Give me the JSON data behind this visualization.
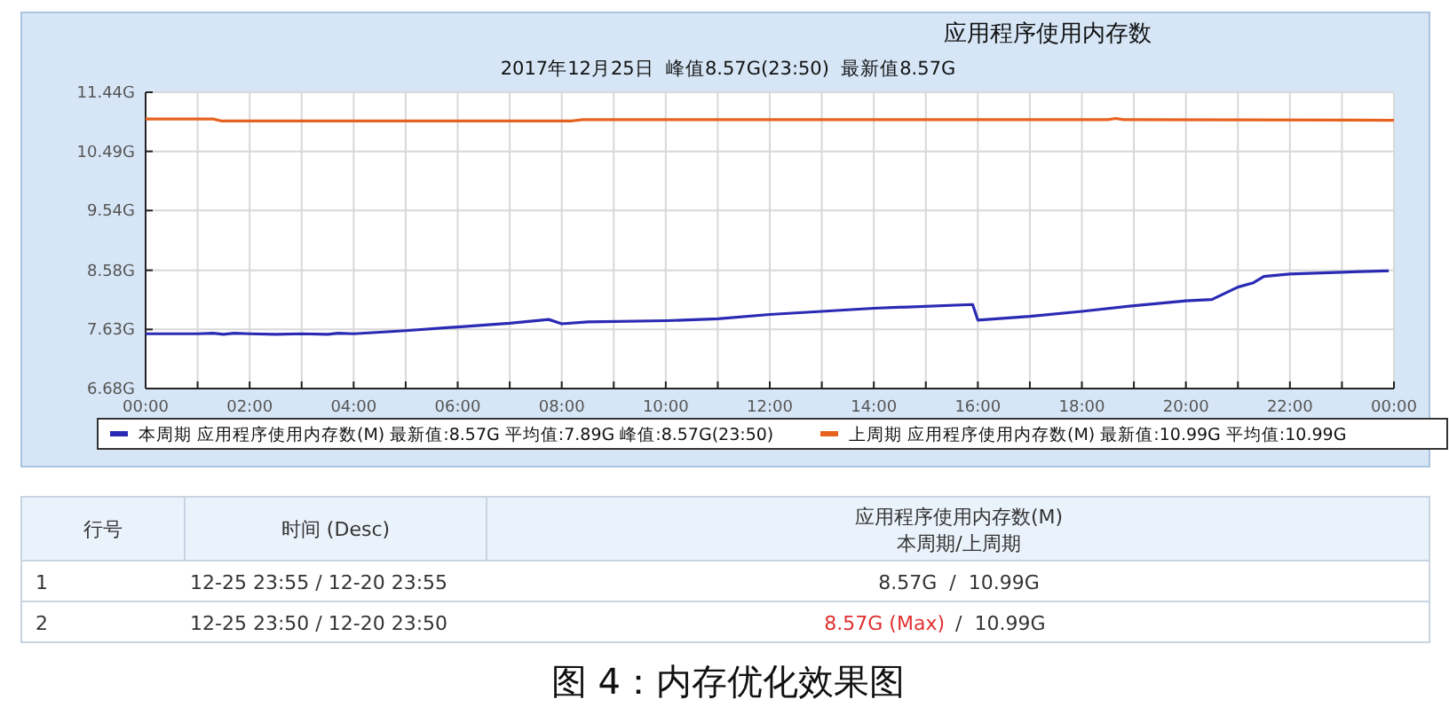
{
  "chart_data": {
    "type": "line",
    "title": "应用程序使用内存数",
    "subtitle": "2017年12月25日  峰值8.57G(23:50)  最新值8.57G",
    "xlim": [
      0,
      24
    ],
    "xticks": [
      {
        "value": 0,
        "label": "00:00"
      },
      {
        "value": 1,
        "label": null
      },
      {
        "value": 2,
        "label": "02:00"
      },
      {
        "value": 3,
        "label": null
      },
      {
        "value": 4,
        "label": "04:00"
      },
      {
        "value": 5,
        "label": null
      },
      {
        "value": 6,
        "label": "06:00"
      },
      {
        "value": 7,
        "label": null
      },
      {
        "value": 8,
        "label": "08:00"
      },
      {
        "value": 9,
        "label": null
      },
      {
        "value": 10,
        "label": "10:00"
      },
      {
        "value": 11,
        "label": null
      },
      {
        "value": 12,
        "label": "12:00"
      },
      {
        "value": 13,
        "label": null
      },
      {
        "value": 14,
        "label": "14:00"
      },
      {
        "value": 15,
        "label": null
      },
      {
        "value": 16,
        "label": "16:00"
      },
      {
        "value": 17,
        "label": null
      },
      {
        "value": 18,
        "label": "18:00"
      },
      {
        "value": 19,
        "label": null
      },
      {
        "value": 20,
        "label": "20:00"
      },
      {
        "value": 21,
        "label": null
      },
      {
        "value": 22,
        "label": "22:00"
      },
      {
        "value": 23,
        "label": null
      },
      {
        "value": 24,
        "label": "00:00"
      }
    ],
    "ylim": [
      6.68,
      11.44
    ],
    "yticks": [
      {
        "value": 6.68,
        "label": "6.68G"
      },
      {
        "value": 7.63,
        "label": "7.63G"
      },
      {
        "value": 8.58,
        "label": "8.58G"
      },
      {
        "value": 9.54,
        "label": "9.54G"
      },
      {
        "value": 10.49,
        "label": "10.49G"
      },
      {
        "value": 11.44,
        "label": "11.44G"
      }
    ],
    "grid": true,
    "legend": "bottom",
    "marker": "none",
    "line_style": "solid",
    "series": [
      {
        "name": "本周期 应用程序使用内存数(M) 最新值:8.57G 平均值:7.89G 峰值:8.57G(23:50)",
        "color": "#2a2ab4",
        "x": [
          0,
          1,
          1.3,
          1.5,
          1.7,
          2,
          2.5,
          3,
          3.5,
          3.7,
          4,
          5,
          6,
          7,
          7.75,
          8,
          8.5,
          10,
          11,
          12,
          14,
          15.9,
          16,
          17,
          18,
          19,
          20,
          20.5,
          21,
          21.3,
          21.5,
          22,
          23,
          23.83,
          23.9
        ],
        "values": [
          7.56,
          7.56,
          7.57,
          7.55,
          7.57,
          7.56,
          7.55,
          7.56,
          7.55,
          7.57,
          7.56,
          7.61,
          7.67,
          7.73,
          7.79,
          7.72,
          7.75,
          7.77,
          7.8,
          7.87,
          7.97,
          8.03,
          7.78,
          7.84,
          7.92,
          8.01,
          8.09,
          8.11,
          8.31,
          8.38,
          8.48,
          8.52,
          8.55,
          8.57,
          8.57
        ]
      },
      {
        "name": "上周期 应用程序使用内存数(M) 最新值:10.99G 平均值:10.99G",
        "color": "#e8621f",
        "x": [
          0,
          1.3,
          1.45,
          8.2,
          8.4,
          18.5,
          18.65,
          18.8,
          24
        ],
        "values": [
          11.01,
          11.01,
          10.98,
          10.98,
          11.0,
          11.0,
          11.02,
          11.0,
          10.99
        ]
      }
    ],
    "annotations": [
      "行号",
      "时间 (Desc)",
      "应用程序使用内存数(M)",
      "本周期/上周期",
      "1",
      "12-25 23:55 / 12-20 23:55",
      "8.57G  /  10.99G",
      "2",
      "12-25 23:50 / 12-20 23:50",
      "8.57G (Max)",
      "/  10.99G",
      "图 4：内存优化效果图"
    ]
  }
}
